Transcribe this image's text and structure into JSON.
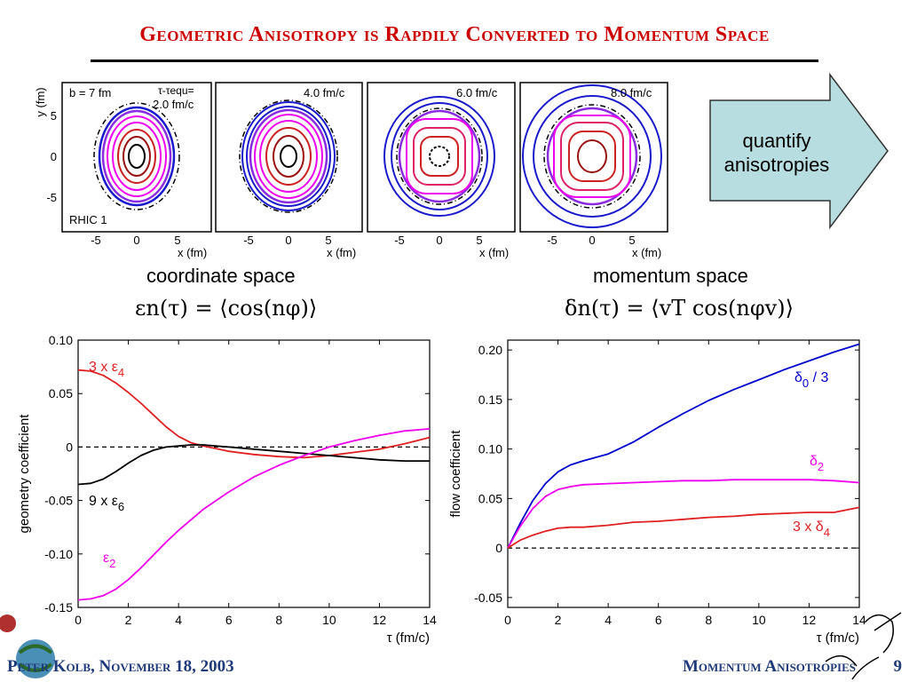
{
  "slide": {
    "title": "Geometric Anisotropy is Rapdily Converted to Momentum Space",
    "coordinate_label": "coordinate space",
    "momentum_label": "momentum space",
    "coord_formula": "εn(τ) = ⟨cos(nφ)⟩",
    "mom_formula": "δn(τ) = ⟨vT cos(nφv)⟩",
    "arrow_text_line1": "quantify",
    "arrow_text_line2": "anisotropies",
    "footer_left": "Peter Kolb, November 18, 2003",
    "footer_right": "Momentum Anisotropies",
    "page_number": "9",
    "colors": {
      "title": "#cc0000",
      "footer": "#1f3a7a",
      "arrow_fill": "#b7dde0"
    }
  },
  "contour_panels": {
    "ylabel": "y (fm)",
    "xlabel": "x (fm)",
    "xticks": [
      "-5",
      "0",
      "5"
    ],
    "yticks": [
      "5",
      "0",
      "-5"
    ],
    "panel1": {
      "b": "b = 7 fm",
      "tau_line1": "τ-τequ=",
      "tau_line2": "2.0 fm/c",
      "tag": "RHIC 1"
    },
    "panel2": {
      "time": "4.0 fm/c"
    },
    "panel3": {
      "time": "6.0 fm/c"
    },
    "panel4": {
      "time": "8.0 fm/c"
    }
  },
  "chart_data": [
    {
      "type": "line",
      "xlabel": "τ (fm/c)",
      "ylabel": "geometry coefficient",
      "xlim": [
        0,
        14
      ],
      "ylim": [
        -0.15,
        0.1
      ],
      "xticks": [
        0,
        2,
        4,
        6,
        8,
        10,
        12,
        14
      ],
      "yticks": [
        0.1,
        0.05,
        0,
        -0.05,
        -0.1,
        -0.15
      ],
      "ytick_labels": [
        "0.10",
        "0.05",
        "0",
        "-0.05",
        "-0.10",
        "-0.15"
      ],
      "series": [
        {
          "name": "3 x ε4",
          "color": "#e02020",
          "x": [
            0,
            0.5,
            1,
            1.5,
            2,
            2.5,
            3,
            3.5,
            4,
            4.5,
            5,
            6,
            7,
            8,
            9,
            10,
            11,
            12,
            13,
            14
          ],
          "y": [
            0.072,
            0.071,
            0.067,
            0.06,
            0.051,
            0.041,
            0.03,
            0.019,
            0.01,
            0.004,
            0.001,
            -0.004,
            -0.007,
            -0.009,
            -0.01,
            -0.008,
            -0.005,
            -0.002,
            0.003,
            0.009
          ]
        },
        {
          "name": "9 x ε6",
          "color": "#000000",
          "x": [
            0,
            0.5,
            1,
            1.5,
            2,
            2.5,
            3,
            3.5,
            4,
            4.5,
            5,
            6,
            7,
            8,
            9,
            10,
            11,
            12,
            13,
            14
          ],
          "y": [
            -0.035,
            -0.034,
            -0.03,
            -0.023,
            -0.015,
            -0.008,
            -0.003,
            0,
            0.001,
            0.002,
            0.002,
            0,
            -0.002,
            -0.004,
            -0.006,
            -0.008,
            -0.01,
            -0.012,
            -0.013,
            -0.013
          ]
        },
        {
          "name": "ε2",
          "color": "#ee00ee",
          "x": [
            0,
            0.5,
            1,
            1.5,
            2,
            2.5,
            3,
            3.5,
            4,
            5,
            6,
            7,
            8,
            9,
            10,
            11,
            12,
            13,
            14
          ],
          "y": [
            -0.143,
            -0.142,
            -0.139,
            -0.133,
            -0.124,
            -0.113,
            -0.101,
            -0.089,
            -0.078,
            -0.058,
            -0.042,
            -0.028,
            -0.017,
            -0.008,
            0,
            0.006,
            0.011,
            0.015,
            0.017
          ]
        }
      ],
      "annotations": [
        "3 x ε4",
        "9 x ε6",
        "ε2"
      ]
    },
    {
      "type": "line",
      "xlabel": "τ (fm/c)",
      "ylabel": "flow coefficient",
      "xlim": [
        0,
        14
      ],
      "ylim": [
        -0.06,
        0.21
      ],
      "xticks": [
        0,
        2,
        4,
        6,
        8,
        10,
        12,
        14
      ],
      "yticks": [
        0.2,
        0.15,
        0.1,
        0.05,
        0,
        -0.05
      ],
      "ytick_labels": [
        "0.20",
        "0.15",
        "0.10",
        "0.05",
        "0",
        "-0.05"
      ],
      "series": [
        {
          "name": "δ0 / 3",
          "color": "#0000cc",
          "x": [
            0,
            0.5,
            1,
            1.5,
            2,
            2.5,
            3,
            4,
            5,
            6,
            7,
            8,
            9,
            10,
            11,
            12,
            13,
            14
          ],
          "y": [
            0,
            0.025,
            0.048,
            0.065,
            0.077,
            0.084,
            0.088,
            0.095,
            0.107,
            0.122,
            0.136,
            0.149,
            0.16,
            0.17,
            0.18,
            0.189,
            0.198,
            0.206
          ]
        },
        {
          "name": "δ2",
          "color": "#ee00ee",
          "x": [
            0,
            0.5,
            1,
            1.5,
            2,
            2.5,
            3,
            4,
            5,
            6,
            7,
            8,
            9,
            10,
            11,
            12,
            13,
            14
          ],
          "y": [
            0,
            0.022,
            0.04,
            0.052,
            0.059,
            0.062,
            0.064,
            0.065,
            0.066,
            0.067,
            0.068,
            0.068,
            0.069,
            0.069,
            0.069,
            0.069,
            0.068,
            0.066
          ]
        },
        {
          "name": "3 x δ4",
          "color": "#e02020",
          "x": [
            0,
            0.5,
            1,
            1.5,
            2,
            2.5,
            3,
            4,
            5,
            6,
            7,
            8,
            9,
            10,
            11,
            12,
            13,
            14
          ],
          "y": [
            0,
            0.008,
            0.013,
            0.017,
            0.02,
            0.021,
            0.021,
            0.023,
            0.026,
            0.027,
            0.029,
            0.031,
            0.032,
            0.034,
            0.035,
            0.036,
            0.036,
            0.041
          ]
        }
      ],
      "annotations": [
        "δ0 / 3",
        "δ2",
        "3 x δ4"
      ]
    }
  ]
}
